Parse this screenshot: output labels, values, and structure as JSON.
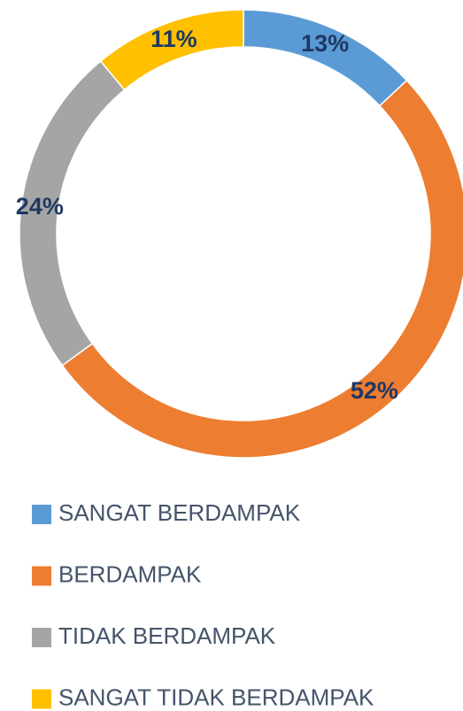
{
  "chart_data": {
    "type": "donut",
    "categories": [
      "SANGAT BERDAMPAK",
      "BERDAMPAK",
      "TIDAK BERDAMPAK",
      "SANGAT TIDAK BERDAMPAK"
    ],
    "values": [
      13,
      52,
      24,
      11
    ],
    "value_labels": [
      "13%",
      "52%",
      "24%",
      "11%"
    ],
    "colors": [
      "#5b9bd5",
      "#ed7d31",
      "#a5a5a5",
      "#ffc000"
    ],
    "legend": "bottom"
  }
}
